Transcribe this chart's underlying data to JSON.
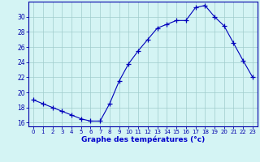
{
  "hours": [
    0,
    1,
    2,
    3,
    4,
    5,
    6,
    7,
    8,
    9,
    10,
    11,
    12,
    13,
    14,
    15,
    16,
    17,
    18,
    19,
    20,
    21,
    22,
    23
  ],
  "temps": [
    19.0,
    18.5,
    18.0,
    17.5,
    17.0,
    16.5,
    16.2,
    16.2,
    18.5,
    21.5,
    23.8,
    25.5,
    27.0,
    28.5,
    29.0,
    29.5,
    29.5,
    31.2,
    31.5,
    30.0,
    28.8,
    26.5,
    24.2,
    22.0
  ],
  "line_color": "#0000bb",
  "marker": "+",
  "marker_size": 4,
  "xlabel": "Graphe des températures (°c)",
  "xlabel_color": "#0000cc",
  "bg_color": "#d4f4f4",
  "grid_color": "#a0cccc",
  "axis_color": "#0000aa",
  "tick_color": "#0000aa",
  "ylim": [
    15.5,
    32.0
  ],
  "yticks": [
    16,
    18,
    20,
    22,
    24,
    26,
    28,
    30
  ],
  "xlim": [
    -0.5,
    23.5
  ],
  "xticks": [
    0,
    1,
    2,
    3,
    4,
    5,
    6,
    7,
    8,
    9,
    10,
    11,
    12,
    13,
    14,
    15,
    16,
    17,
    18,
    19,
    20,
    21,
    22,
    23
  ]
}
